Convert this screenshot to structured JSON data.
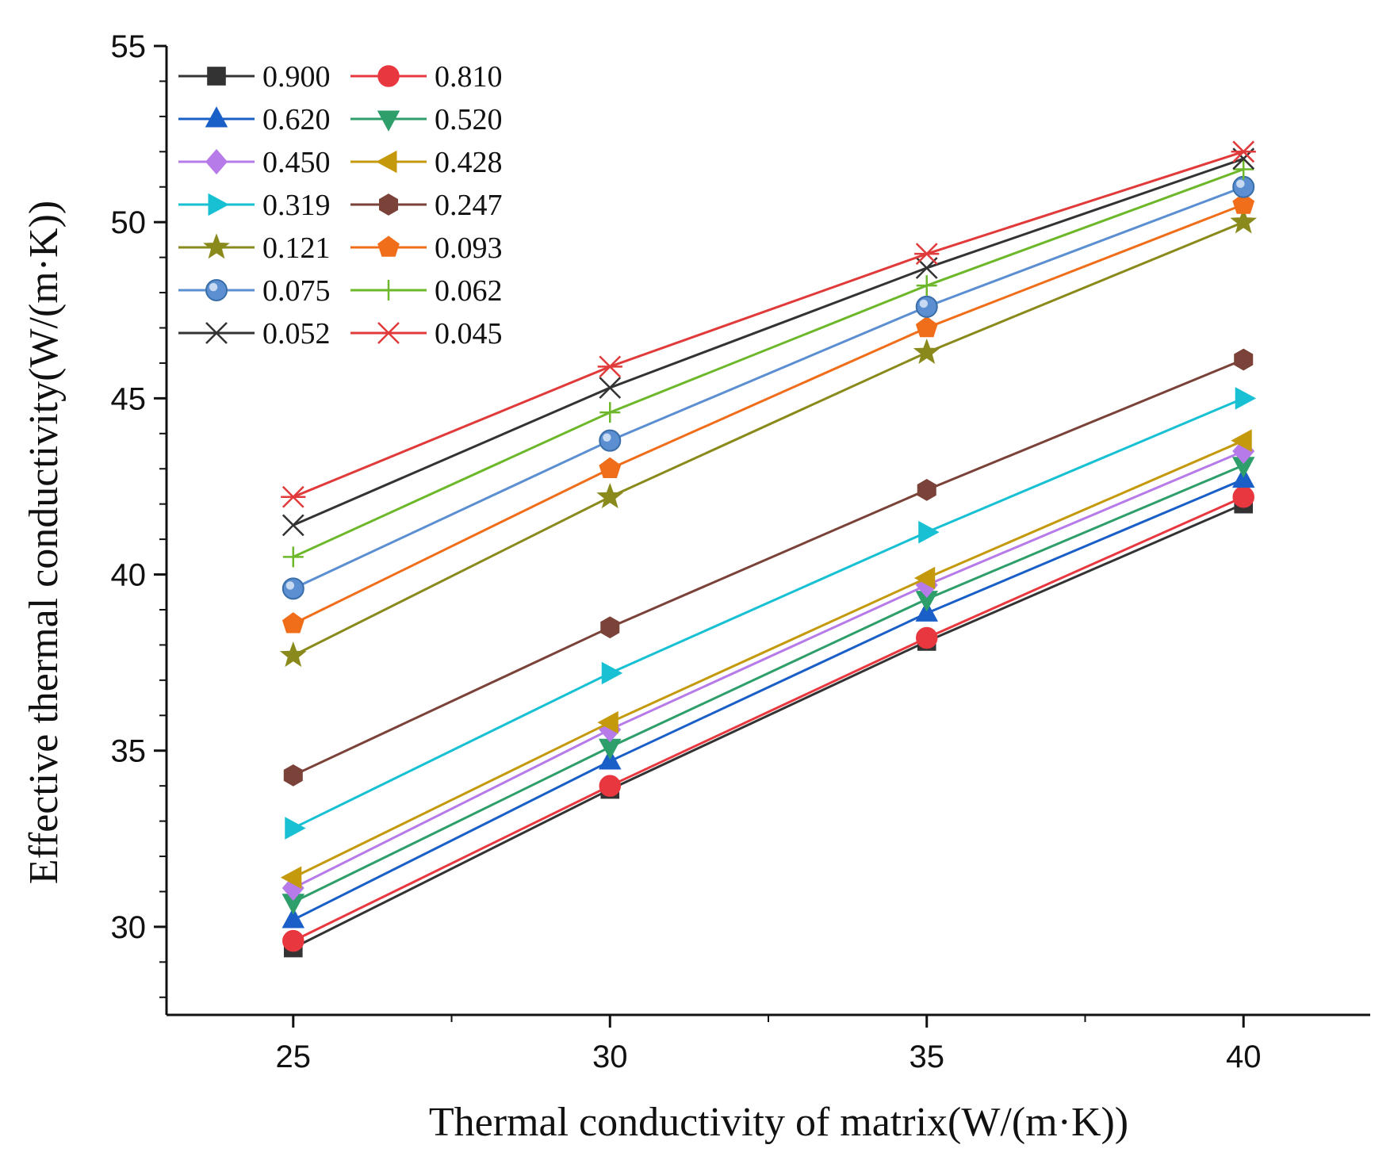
{
  "chart_data": {
    "type": "line",
    "title": "",
    "xlabel": "Thermal conductivity of matrix(W/(m·K))",
    "ylabel": "Effective thermal conductivity(W/(m·K))",
    "x": [
      25,
      30,
      35,
      40
    ],
    "xlim": [
      23,
      42
    ],
    "ylim": [
      27.5,
      55
    ],
    "xticks": [
      "25",
      "30",
      "35",
      "40"
    ],
    "yticks": [
      "30",
      "35",
      "40",
      "45",
      "50",
      "55"
    ],
    "grid": false,
    "legend_position": "top-left",
    "series": [
      {
        "name": "0.900",
        "values": [
          29.4,
          33.9,
          38.1,
          42.0
        ],
        "color": "#333333",
        "marker": "square"
      },
      {
        "name": "0.810",
        "values": [
          29.6,
          34.0,
          38.2,
          42.2
        ],
        "color": "#e8373e",
        "marker": "circle"
      },
      {
        "name": "0.620",
        "values": [
          30.2,
          34.7,
          38.9,
          42.7
        ],
        "color": "#1a5fc8",
        "marker": "triangle-up"
      },
      {
        "name": "0.520",
        "values": [
          30.7,
          35.1,
          39.3,
          43.1
        ],
        "color": "#2e9e6a",
        "marker": "triangle-down"
      },
      {
        "name": "0.450",
        "values": [
          31.1,
          35.6,
          39.7,
          43.5
        ],
        "color": "#b67be8",
        "marker": "diamond"
      },
      {
        "name": "0.428",
        "values": [
          31.4,
          35.8,
          39.9,
          43.8
        ],
        "color": "#c49a0c",
        "marker": "triangle-left"
      },
      {
        "name": "0.319",
        "values": [
          32.8,
          37.2,
          41.2,
          45.0
        ],
        "color": "#17c0d2",
        "marker": "triangle-right"
      },
      {
        "name": "0.247",
        "values": [
          34.3,
          38.5,
          42.4,
          46.1
        ],
        "color": "#7a4238",
        "marker": "hexagon"
      },
      {
        "name": "0.121",
        "values": [
          37.7,
          42.2,
          46.3,
          50.0
        ],
        "color": "#8a8a1c",
        "marker": "star"
      },
      {
        "name": "0.093",
        "values": [
          38.6,
          43.0,
          47.0,
          50.5
        ],
        "color": "#f06d1a",
        "marker": "pentagon"
      },
      {
        "name": "0.075",
        "values": [
          39.6,
          43.8,
          47.6,
          51.0
        ],
        "color": "#5b8fd1",
        "marker": "sphere"
      },
      {
        "name": "0.062",
        "values": [
          40.5,
          44.6,
          48.2,
          51.5
        ],
        "color": "#6cb82a",
        "marker": "plus"
      },
      {
        "name": "0.052",
        "values": [
          41.4,
          45.3,
          48.7,
          51.8
        ],
        "color": "#333333",
        "marker": "x"
      },
      {
        "name": "0.045",
        "values": [
          42.2,
          45.9,
          49.1,
          52.0
        ],
        "color": "#e03a3a",
        "marker": "asterisk"
      }
    ]
  }
}
